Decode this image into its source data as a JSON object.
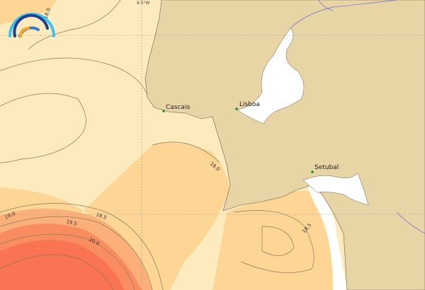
{
  "map": {
    "grid_label": "9.5°W",
    "cities": [
      {
        "name": "Cascais"
      },
      {
        "name": "Lisboa"
      },
      {
        "name": "Setubal"
      }
    ],
    "contour_labels": [
      "18.0",
      "18.0",
      "18.5",
      "18.5",
      "19.0",
      "19.5",
      "20.0"
    ],
    "colors": {
      "land": "#e8d5a6",
      "sea_low": "#fdebbd",
      "sea_mid": "#fdd594",
      "sea_warm": "#fbb07a",
      "sea_hot": "#f98d60",
      "sea_max": "#fa7352",
      "estuary": "#ffffff",
      "logo_light": "#3cc4f0",
      "logo_dark": "#213f8f",
      "logo_mid": "#3b7dc4",
      "logo_orange": "#f6a623"
    }
  },
  "logo": {
    "icon": "wave-arcs-logo-icon"
  }
}
